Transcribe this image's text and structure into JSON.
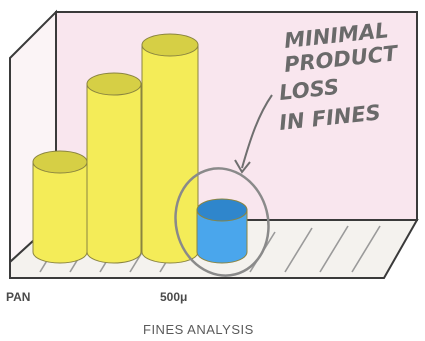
{
  "chart_data": {
    "type": "bar",
    "style": "3d-cylinder",
    "title": "",
    "xlabel": "FINES ANALYSIS",
    "ylabel": "",
    "tick_labels": [
      "PAN",
      "500μ"
    ],
    "categories": [
      "1",
      "2",
      "3",
      "4"
    ],
    "values": [
      3,
      5.6,
      6.9,
      1.4
    ],
    "ylim": [
      0,
      8
    ],
    "grid": false,
    "legend": "none",
    "bar_colors": [
      "#f4ec58",
      "#f4ec58",
      "#f4ec58",
      "#4aa6ec"
    ],
    "annotation": {
      "lines": [
        "MINIMAL",
        "PRODUCT",
        "LOSS",
        "IN FINES"
      ],
      "target_category": "4"
    }
  },
  "colors": {
    "backdrop": "#f9e6ee",
    "floor": "#f4f2ee",
    "frame": "#3a3a3a",
    "yellow": "#f4ec58",
    "yellow_top": "#d6cf45",
    "blue": "#4aa6ec",
    "blue_top": "#2f86cc",
    "circle": "#8a8a8a"
  }
}
